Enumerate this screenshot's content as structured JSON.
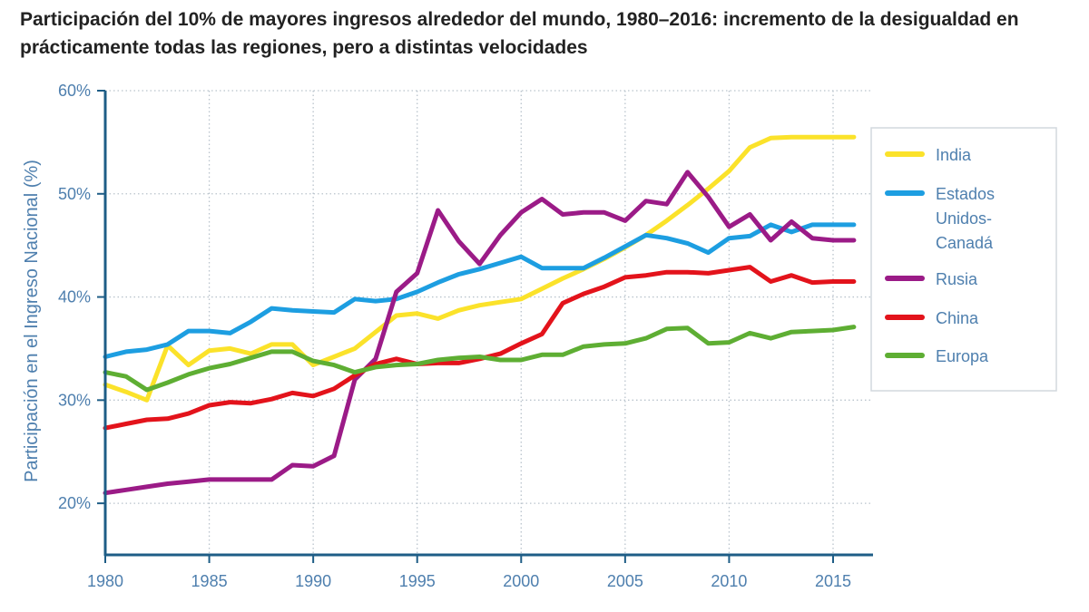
{
  "chart_data": {
    "type": "line",
    "title": "Participación del 10% de mayores ingresos alrededor del mundo, 1980–2016: incremento de la desigualdad en prácticamente todas las regiones, pero a distintas velocidades",
    "xlabel": "",
    "ylabel": "Participación en el Ingreso Nacional (%)",
    "xlim": [
      1980,
      2016
    ],
    "ylim": [
      15,
      60
    ],
    "xticks": [
      1980,
      1985,
      1990,
      1995,
      2000,
      2005,
      2010,
      2015
    ],
    "yticks": [
      20,
      30,
      40,
      50,
      60
    ],
    "ytick_suffix": "%",
    "grid": true,
    "legend_position": "right",
    "x": [
      1980,
      1981,
      1982,
      1983,
      1984,
      1985,
      1986,
      1987,
      1988,
      1989,
      1990,
      1991,
      1992,
      1993,
      1994,
      1995,
      1996,
      1997,
      1998,
      1999,
      2000,
      2001,
      2002,
      2003,
      2004,
      2005,
      2006,
      2007,
      2008,
      2009,
      2010,
      2011,
      2012,
      2013,
      2014,
      2015,
      2016
    ],
    "series": [
      {
        "name": "India",
        "legend_lines": [
          "India"
        ],
        "color": "#fbe22a",
        "values": [
          31.5,
          30.8,
          30.0,
          35.3,
          33.4,
          34.8,
          35.0,
          34.5,
          35.4,
          35.4,
          33.4,
          34.2,
          35.0,
          36.6,
          38.2,
          38.4,
          37.9,
          38.7,
          39.2,
          39.5,
          39.8,
          40.8,
          41.8,
          42.7,
          43.7,
          44.8,
          46.0,
          47.4,
          48.9,
          50.5,
          52.2,
          54.5,
          55.4,
          55.5,
          55.5,
          55.5,
          55.5
        ]
      },
      {
        "name": "Estados Unidos-Canadá",
        "legend_lines": [
          "Estados",
          "Unidos-",
          "Canadá"
        ],
        "color": "#1d9ee1",
        "values": [
          34.2,
          34.7,
          34.9,
          35.4,
          36.7,
          36.7,
          36.5,
          37.6,
          38.9,
          38.7,
          38.6,
          38.5,
          39.8,
          39.6,
          39.8,
          40.5,
          41.4,
          42.2,
          42.7,
          43.3,
          43.9,
          42.8,
          42.8,
          42.8,
          43.8,
          44.9,
          46.0,
          45.7,
          45.2,
          44.3,
          45.7,
          45.9,
          47.0,
          46.3,
          47.0,
          47.0,
          47.0
        ]
      },
      {
        "name": "Rusia",
        "legend_lines": [
          "Rusia"
        ],
        "color": "#9b1b87",
        "values": [
          21.0,
          21.3,
          21.6,
          21.9,
          22.1,
          22.3,
          22.3,
          22.3,
          22.3,
          23.7,
          23.6,
          24.6,
          32.0,
          34.0,
          40.5,
          42.3,
          48.4,
          45.4,
          43.2,
          46.0,
          48.2,
          49.5,
          48.0,
          48.2,
          48.2,
          47.4,
          49.3,
          49.0,
          52.1,
          49.7,
          46.8,
          48.0,
          45.5,
          47.3,
          45.7,
          45.5,
          45.5
        ]
      },
      {
        "name": "China",
        "legend_lines": [
          "China"
        ],
        "color": "#e3131b",
        "values": [
          27.3,
          27.7,
          28.1,
          28.2,
          28.7,
          29.5,
          29.8,
          29.7,
          30.1,
          30.7,
          30.4,
          31.1,
          32.4,
          33.5,
          34.0,
          33.5,
          33.6,
          33.6,
          34.0,
          34.5,
          35.5,
          36.4,
          39.4,
          40.3,
          41.0,
          41.9,
          42.1,
          42.4,
          42.4,
          42.3,
          42.6,
          42.9,
          41.5,
          42.1,
          41.4,
          41.5,
          41.5
        ]
      },
      {
        "name": "Europa",
        "legend_lines": [
          "Europa"
        ],
        "color": "#5eae33",
        "values": [
          32.7,
          32.3,
          31.0,
          31.7,
          32.5,
          33.1,
          33.5,
          34.1,
          34.7,
          34.7,
          33.8,
          33.4,
          32.7,
          33.2,
          33.4,
          33.5,
          33.9,
          34.1,
          34.2,
          33.9,
          33.9,
          34.4,
          34.4,
          35.2,
          35.4,
          35.5,
          36.0,
          36.9,
          37.0,
          35.5,
          35.6,
          36.5,
          36.0,
          36.6,
          36.7,
          36.8,
          37.1
        ]
      }
    ]
  }
}
